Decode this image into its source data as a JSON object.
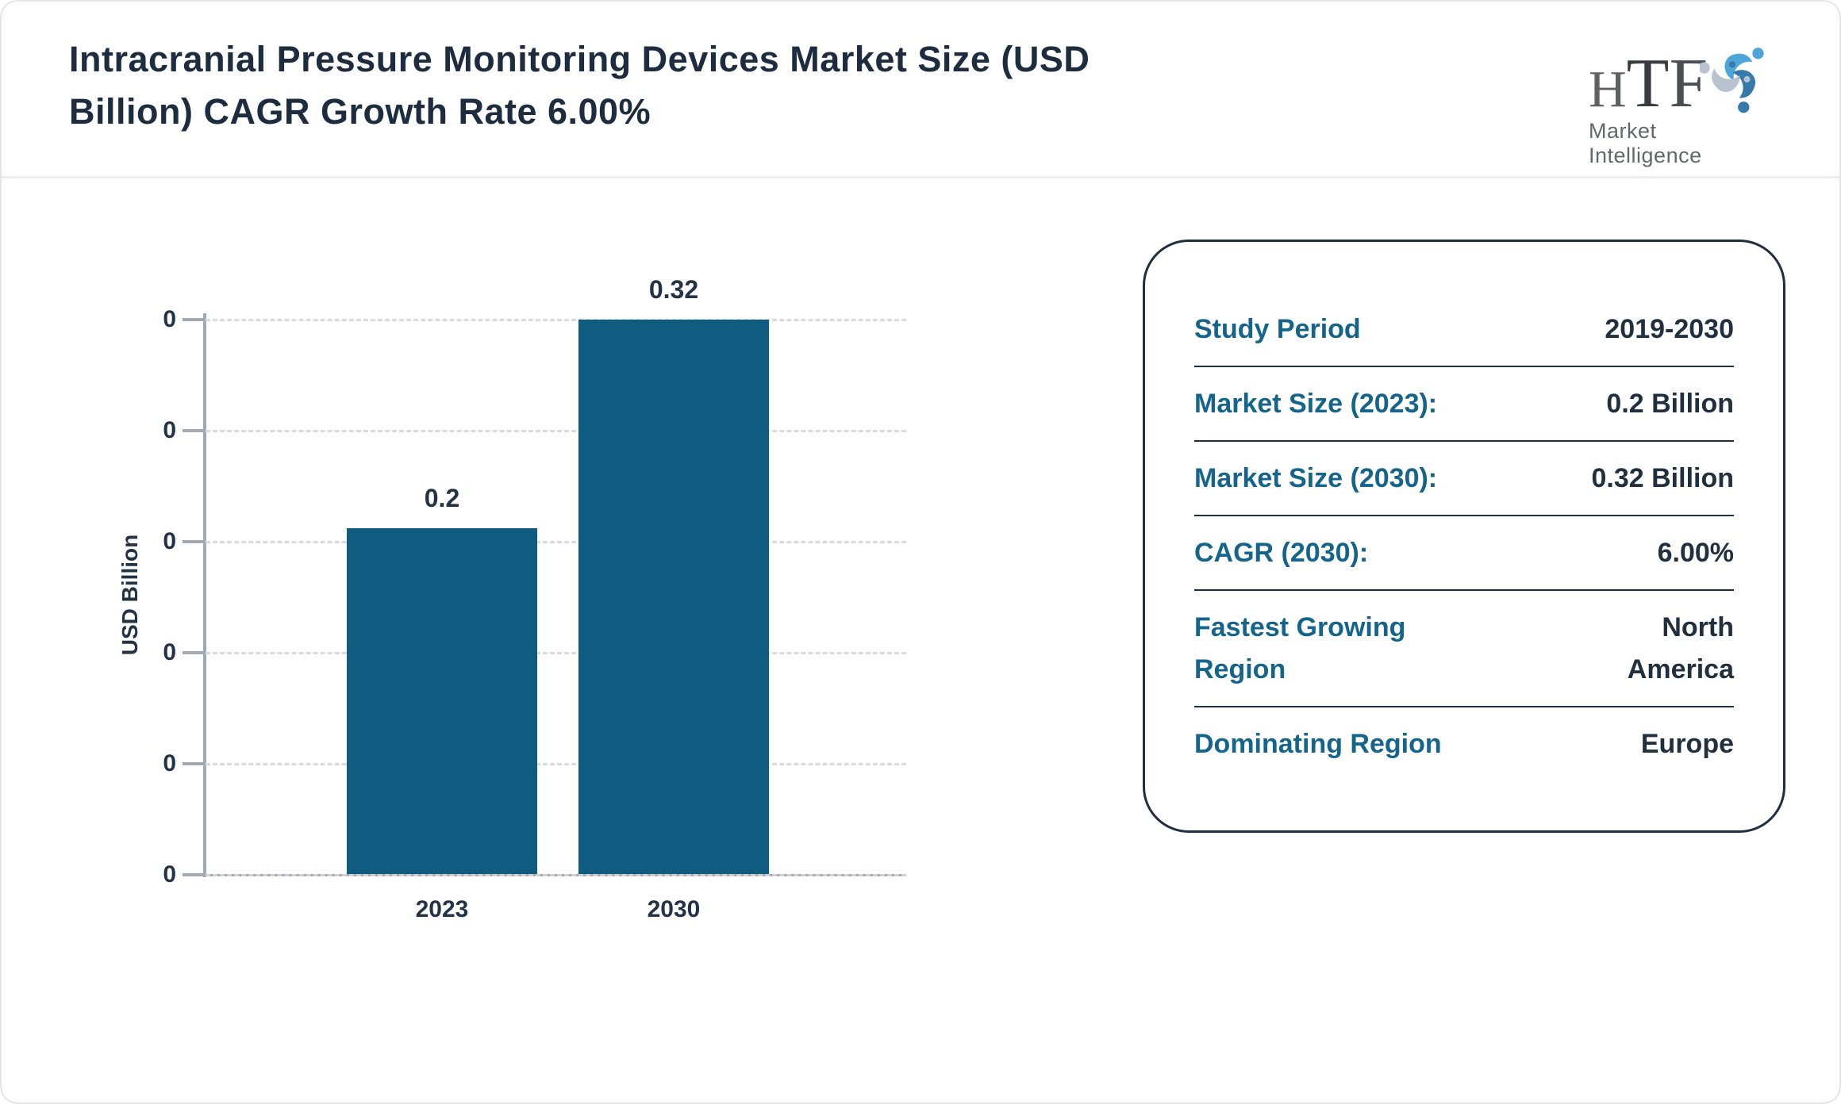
{
  "header": {
    "title": "Intracranial Pressure Monitoring Devices Market Size (USD Billion) CAGR Growth Rate 6.00%"
  },
  "logo": {
    "h": "H",
    "t": "T",
    "f": "F",
    "subtitle": "Market Intelligence",
    "icon": "three-figures-swirl-icon",
    "icon_colors": [
      "#4ea5da",
      "#3779ab",
      "#b7c2ce"
    ]
  },
  "chart_data": {
    "type": "bar",
    "title": "Intracranial Pressure Monitoring Devices Market Size (USD Billion) CAGR Growth Rate 6.00%",
    "categories": [
      "2023",
      "2030"
    ],
    "values": [
      0.2,
      0.32
    ],
    "bar_labels": [
      "0.2",
      "0.32"
    ],
    "xlabel": "",
    "ylabel": "USD Billion",
    "ylim": [
      0,
      0.32
    ],
    "ytick_labels": [
      "0",
      "0",
      "0",
      "0",
      "0",
      "0"
    ],
    "grid": "horizontal-dashed",
    "legend": "none",
    "bar_color": "#0f5c80"
  },
  "info_panel": {
    "rows": [
      {
        "label": "Study Period",
        "value": "2019-2030"
      },
      {
        "label": "Market Size (2023):",
        "value": "0.2 Billion"
      },
      {
        "label": "Market Size (2030):",
        "value": "0.32 Billion"
      },
      {
        "label": "CAGR (2030):",
        "value": "6.00%"
      },
      {
        "label": "Fastest Growing Region",
        "value": "North America"
      },
      {
        "label": "Dominating Region",
        "value": "Europe"
      }
    ]
  },
  "colors": {
    "accent_teal": "#15648c",
    "dark_navy": "#1d2c3e",
    "bar_fill": "#0f5c80",
    "axis_gray": "#a3a9b3",
    "grid_gray": "#d9dadd",
    "card_border": "#e4e5e9"
  }
}
